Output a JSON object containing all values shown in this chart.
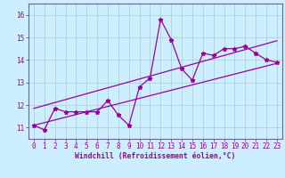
{
  "xlabel": "Windchill (Refroidissement éolien,°C)",
  "bg_color": "#cceeff",
  "line_color": "#990099",
  "grid_color": "#aacccc",
  "xlim": [
    -0.5,
    23.5
  ],
  "ylim": [
    10.5,
    16.5
  ],
  "yticks": [
    11,
    12,
    13,
    14,
    15,
    16
  ],
  "xticks": [
    0,
    1,
    2,
    3,
    4,
    5,
    6,
    7,
    8,
    9,
    10,
    11,
    12,
    13,
    14,
    15,
    16,
    17,
    18,
    19,
    20,
    21,
    22,
    23
  ],
  "x_data": [
    0,
    1,
    2,
    3,
    4,
    5,
    6,
    7,
    8,
    9,
    10,
    11,
    12,
    13,
    14,
    15,
    16,
    17,
    18,
    19,
    20,
    21,
    22,
    23
  ],
  "y_data": [
    11.1,
    10.9,
    11.85,
    11.7,
    11.7,
    11.7,
    11.7,
    12.2,
    11.55,
    11.1,
    12.8,
    13.2,
    15.8,
    14.9,
    13.6,
    13.1,
    14.3,
    14.2,
    14.5,
    14.5,
    14.6,
    14.3,
    14.0,
    13.9
  ],
  "line1_x": [
    0,
    23
  ],
  "line1_y": [
    11.1,
    13.85
  ],
  "line2_x": [
    0,
    23
  ],
  "line2_y": [
    11.85,
    14.85
  ],
  "spine_color": "#666699",
  "tick_color": "#990099",
  "label_fontsize": 5.5,
  "xlabel_fontsize": 5.8
}
